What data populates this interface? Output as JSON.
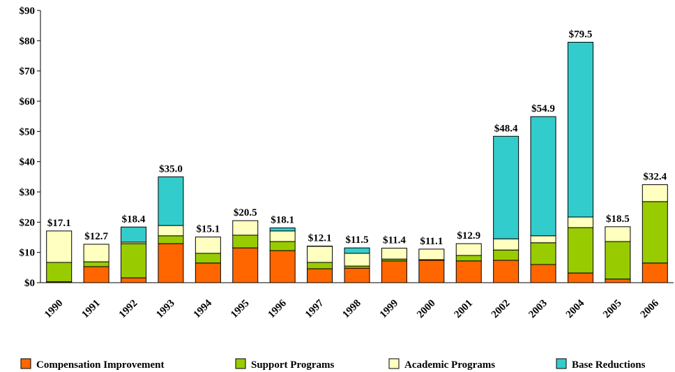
{
  "chart_data": {
    "type": "stacked_bar",
    "categories": [
      "1990",
      "1991",
      "1992",
      "1993",
      "1994",
      "1995",
      "1996",
      "1997",
      "1998",
      "1999",
      "2000",
      "2001",
      "2002",
      "2003",
      "2004",
      "2005",
      "2006"
    ],
    "series": [
      {
        "name": "Compensation Improvement",
        "color": "#ff6600",
        "values": [
          0.3,
          5.3,
          1.6,
          12.9,
          6.5,
          11.5,
          10.6,
          4.6,
          4.8,
          7.2,
          7.4,
          7.2,
          7.4,
          6.0,
          3.2,
          1.2,
          6.5
        ]
      },
      {
        "name": "Support Programs",
        "color": "#99cc00",
        "values": [
          6.4,
          1.6,
          11.3,
          2.6,
          3.2,
          4.2,
          3.0,
          2.1,
          0.7,
          0.6,
          0.2,
          1.8,
          3.4,
          7.2,
          15.0,
          12.4,
          20.3
        ]
      },
      {
        "name": "Academic Programs",
        "color": "#ffffc0",
        "values": [
          10.4,
          5.8,
          0.5,
          3.4,
          5.4,
          4.8,
          3.5,
          5.3,
          4.2,
          3.6,
          3.5,
          3.9,
          3.7,
          2.3,
          3.5,
          4.9,
          5.6
        ]
      },
      {
        "name": "Base Reductions",
        "color": "#33cccc",
        "values": [
          0,
          0,
          5.0,
          16.1,
          0,
          0,
          1.0,
          0.1,
          1.8,
          0,
          0,
          0,
          33.9,
          39.4,
          57.8,
          0,
          0
        ]
      }
    ],
    "totals": [
      17.1,
      12.7,
      18.4,
      35.0,
      15.1,
      20.5,
      18.1,
      12.1,
      11.5,
      11.4,
      11.1,
      12.9,
      48.4,
      54.9,
      79.5,
      18.5,
      32.4
    ],
    "total_labels": [
      "$17.1",
      "$12.7",
      "$18.4",
      "$35.0",
      "$15.1",
      "$20.5",
      "$18.1",
      "$12.1",
      "$11.5",
      "$11.4",
      "$11.1",
      "$12.9",
      "$48.4",
      "$54.9",
      "$79.5",
      "$18.5",
      "$32.4"
    ],
    "ylim": [
      0,
      90
    ],
    "yticks": [
      {
        "value": 0,
        "label": "$0"
      },
      {
        "value": 10,
        "label": "$10"
      },
      {
        "value": 20,
        "label": "$20"
      },
      {
        "value": 30,
        "label": "$30"
      },
      {
        "value": 40,
        "label": "$40"
      },
      {
        "value": 50,
        "label": "$50"
      },
      {
        "value": 60,
        "label": "$60"
      },
      {
        "value": 70,
        "label": "$70"
      },
      {
        "value": 80,
        "label": "$80"
      },
      {
        "value": 90,
        "label": "$90"
      }
    ],
    "legend": "bottom"
  }
}
